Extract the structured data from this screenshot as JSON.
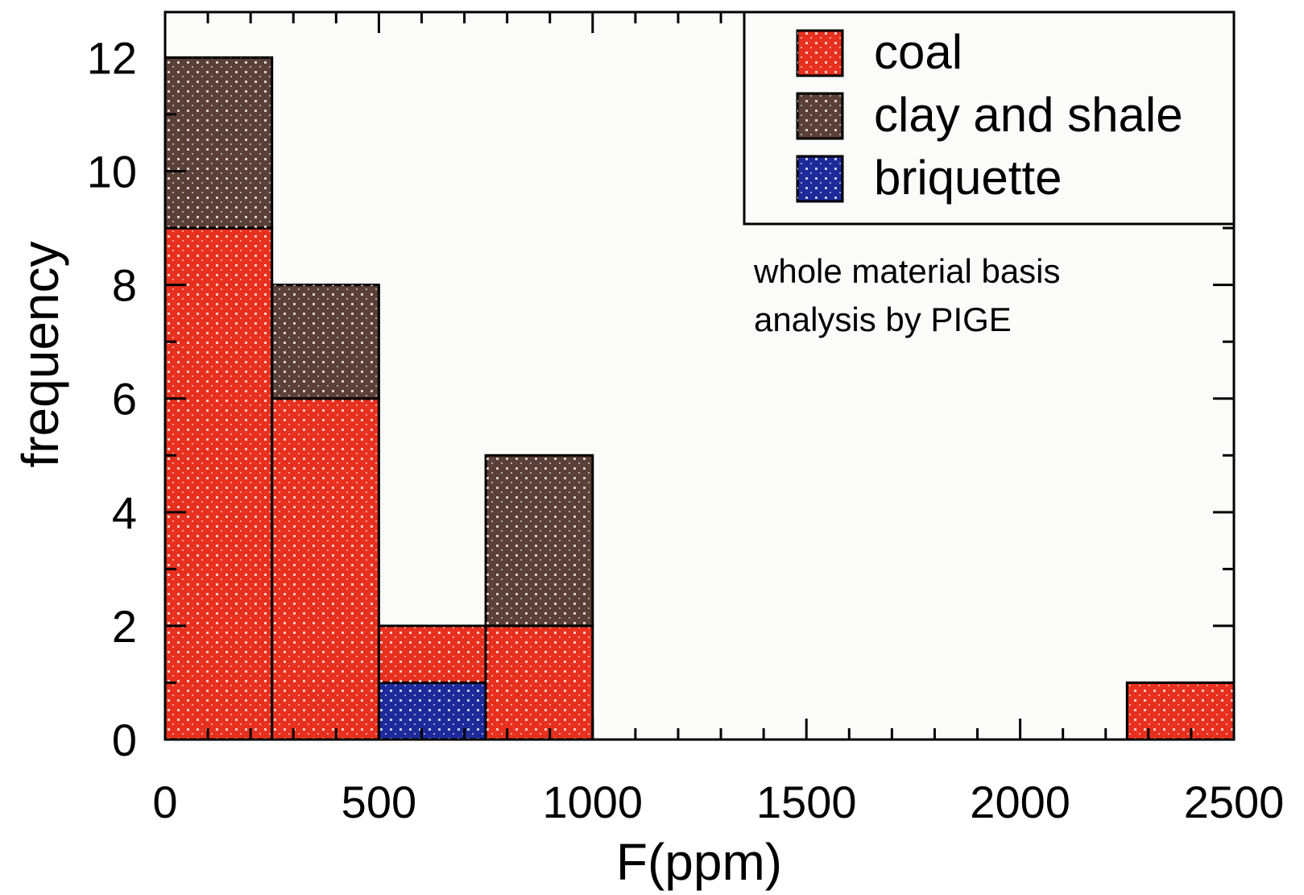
{
  "chart_data": {
    "type": "bar",
    "stacked": true,
    "bin_edges": [
      0,
      250,
      500,
      750,
      1000,
      1250,
      1500,
      1750,
      2000,
      2250,
      2500
    ],
    "series": [
      {
        "name": "coal",
        "color": "#e8301e",
        "values": [
          9,
          6,
          1,
          2,
          0,
          0,
          0,
          0,
          0,
          1
        ]
      },
      {
        "name": "briquette",
        "color": "#1c2a9a",
        "values": [
          0,
          0,
          1,
          0,
          0,
          0,
          0,
          0,
          0,
          0
        ]
      },
      {
        "name": "clay and shale",
        "color": "#5a4038",
        "values": [
          3,
          2,
          0,
          3,
          0,
          0,
          0,
          0,
          0,
          0
        ]
      }
    ],
    "stack_order": [
      "briquette",
      "coal",
      "clay and shale"
    ],
    "legend_order": [
      "coal",
      "clay and shale",
      "briquette"
    ],
    "xlabel": "F(ppm)",
    "ylabel": "frequency",
    "xlim": [
      0,
      2500
    ],
    "ylim": [
      0,
      12.8
    ],
    "x_ticks": [
      0,
      500,
      1000,
      1500,
      2000,
      2500
    ],
    "x_tick_labels": [
      "0",
      "500",
      "1000",
      "1500",
      "2000",
      "2500"
    ],
    "y_ticks": [
      0,
      2,
      4,
      6,
      8,
      10,
      12
    ],
    "y_tick_labels": [
      "0",
      "2",
      "4",
      "6",
      "8",
      "10",
      "12"
    ],
    "x_minor_step": 100,
    "y_minor_step": 1,
    "grid": false,
    "legend_position": "top-right",
    "annotation": [
      "whole material basis",
      "analysis by PIGE"
    ]
  }
}
